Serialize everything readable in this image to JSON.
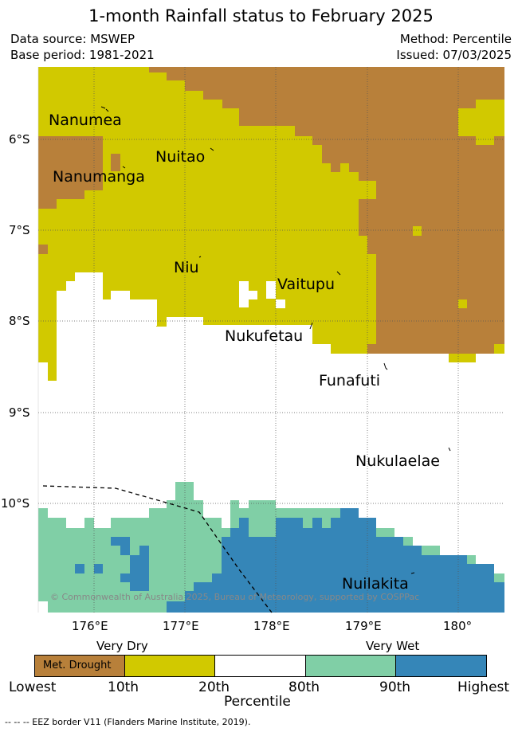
{
  "title": "1-month Rainfall status to February 2025",
  "header": {
    "data_source": "Data source: MSWEP",
    "base_period": "Base period: 1981-2021",
    "method": "Method: Percentile",
    "issued": "Issued: 07/03/2025"
  },
  "map": {
    "y_ticks": [
      "6°S",
      "7°S",
      "8°S",
      "9°S",
      "10°S"
    ],
    "x_ticks": [
      "176°E",
      "177°E",
      "178°E",
      "179°E",
      "180°"
    ],
    "places": [
      "Nanumea",
      "Nuitao",
      "Nanumanga",
      "Niu",
      "Vaitupu",
      "Nukufetau",
      "Funafuti",
      "Nukulaelae",
      "Nuilakita"
    ],
    "copyright": "© Commonwealth of Australia 2025, Bureau of Meteorology, supported by COSPPac"
  },
  "colorbar": {
    "very_dry": "Very Dry",
    "very_wet": "Very Wet",
    "drought_label": "Met. Drought",
    "ticks": [
      "Lowest",
      "10th",
      "20th",
      "80th",
      "90th",
      "Highest"
    ],
    "title": "Percentile",
    "colors": {
      "drought": "#b8803a",
      "dry": "#d1c900",
      "normal": "#ffffff",
      "wet": "#80cfa6",
      "very_wet": "#3586b8"
    }
  },
  "footer": "-- -- -- EEZ border V11 (Flanders Marine Institute, 2019)."
}
